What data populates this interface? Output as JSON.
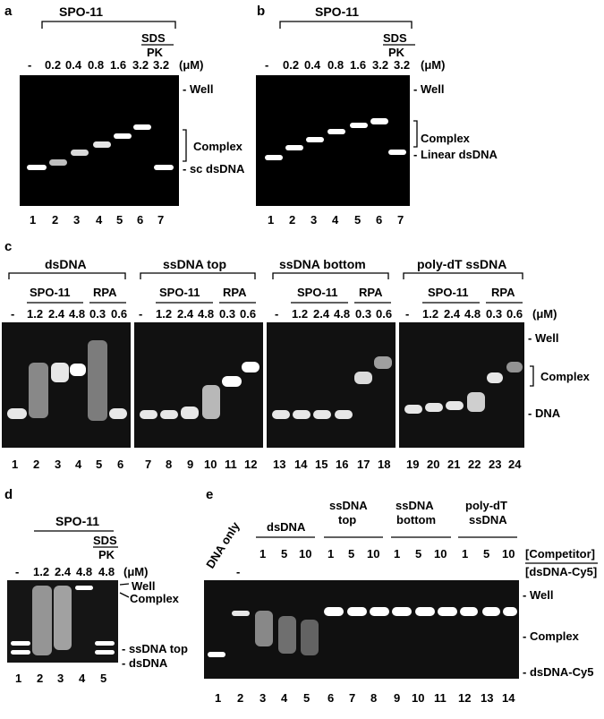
{
  "panels": {
    "a": {
      "letter": "a",
      "title": "SPO-11",
      "treatment_top": "SDS",
      "treatment_bottom": "PK",
      "conc": [
        "-",
        "0.2",
        "0.4",
        "0.8",
        "1.6",
        "3.2",
        "3.2"
      ],
      "unit": "(μM)",
      "lanes": [
        "1",
        "2",
        "3",
        "4",
        "5",
        "6",
        "7"
      ],
      "labels": {
        "well": "- Well",
        "complex": "Complex",
        "dna": "- sc dsDNA"
      }
    },
    "b": {
      "letter": "b",
      "title": "SPO-11",
      "treatment_top": "SDS",
      "treatment_bottom": "PK",
      "conc": [
        "-",
        "0.2",
        "0.4",
        "0.8",
        "1.6",
        "3.2",
        "3.2"
      ],
      "unit": "(μM)",
      "lanes": [
        "1",
        "2",
        "3",
        "4",
        "5",
        "6",
        "7"
      ],
      "labels": {
        "well": "- Well",
        "complex": "Complex",
        "dna": "- Linear dsDNA"
      }
    },
    "c": {
      "letter": "c",
      "groups": [
        {
          "title": "dsDNA",
          "lanes": [
            "1",
            "2",
            "3",
            "4",
            "5",
            "6"
          ]
        },
        {
          "title": "ssDNA top",
          "lanes": [
            "7",
            "8",
            "9",
            "10",
            "11",
            "12"
          ]
        },
        {
          "title": "ssDNA bottom",
          "lanes": [
            "13",
            "14",
            "15",
            "16",
            "17",
            "18"
          ]
        },
        {
          "title": "poly-dT ssDNA",
          "lanes": [
            "19",
            "20",
            "21",
            "22",
            "23",
            "24"
          ]
        }
      ],
      "sub_spo": "SPO-11",
      "sub_rpa": "RPA",
      "conc": [
        "-",
        "1.2",
        "2.4",
        "4.8",
        "0.3",
        "0.6"
      ],
      "unit": "(μM)",
      "labels": {
        "well": "- Well",
        "complex": "Complex",
        "dna": "- DNA"
      }
    },
    "d": {
      "letter": "d",
      "title": "SPO-11",
      "treatment_top": "SDS",
      "treatment_bottom": "PK",
      "conc": [
        "-",
        "1.2",
        "2.4",
        "4.8",
        "4.8"
      ],
      "unit": "(μM)",
      "lanes": [
        "1",
        "2",
        "3",
        "4",
        "5"
      ],
      "labels": {
        "well": "Well",
        "complex": "Complex",
        "top": "- ssDNA top",
        "ds": "- dsDNA"
      }
    },
    "e": {
      "letter": "e",
      "dna_only": "DNA only",
      "minus": "-",
      "groups": [
        {
          "title": [
            "dsDNA"
          ]
        },
        {
          "title": [
            "ssDNA",
            "top"
          ]
        },
        {
          "title": [
            "ssDNA",
            "bottom"
          ]
        },
        {
          "title": [
            "poly-dT",
            "ssDNA"
          ]
        }
      ],
      "ratio": [
        "1",
        "5",
        "10"
      ],
      "header1": "[Competitor]",
      "header2": "[dsDNA-Cy5]",
      "lanes": [
        "1",
        "2",
        "3",
        "4",
        "5",
        "6",
        "7",
        "8",
        "9",
        "10",
        "11",
        "12",
        "13",
        "14"
      ],
      "labels": {
        "well": "- Well",
        "complex": "- Complex",
        "dna": "- dsDNA-Cy5"
      }
    }
  }
}
